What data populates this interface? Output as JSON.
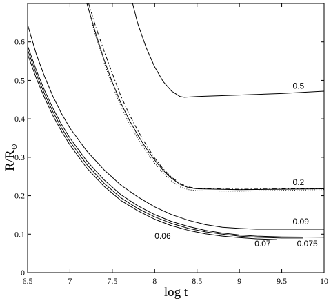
{
  "chart_data": {
    "type": "line",
    "title": "",
    "xlabel": "log t",
    "ylabel_main": "R/R",
    "ylabel_sub": "⊙",
    "xlim": [
      6.5,
      10
    ],
    "ylim": [
      0,
      0.7
    ],
    "x_ticks": [
      "6.5",
      "7",
      "7.5",
      "8",
      "8.5",
      "9",
      "9.5",
      "10"
    ],
    "y_ticks": [
      "0",
      "0.1",
      "0.2",
      "0.3",
      "0.4",
      "0.5",
      "0.6"
    ],
    "grid": false,
    "legend": "none",
    "series": [
      {
        "label": "0.5",
        "style": "solid",
        "x": [
          7.74,
          7.8,
          7.9,
          8.0,
          8.1,
          8.2,
          8.3,
          8.35,
          8.5,
          9.0,
          9.5,
          10.0
        ],
        "y": [
          0.7,
          0.648,
          0.585,
          0.535,
          0.497,
          0.472,
          0.458,
          0.456,
          0.458,
          0.462,
          0.466,
          0.472
        ]
      },
      {
        "label": "0.2",
        "style": "solid",
        "x": [
          7.2,
          7.3,
          7.4,
          7.5,
          7.6,
          7.7,
          7.8,
          7.9,
          8.0,
          8.1,
          8.2,
          8.3,
          8.4,
          8.5,
          9.0,
          9.5,
          10.0
        ],
        "y": [
          0.7,
          0.625,
          0.555,
          0.495,
          0.442,
          0.397,
          0.358,
          0.323,
          0.293,
          0.266,
          0.245,
          0.23,
          0.221,
          0.218,
          0.216,
          0.217,
          0.218
        ]
      },
      {
        "label": "",
        "style": "dashdot",
        "x": [
          7.22,
          7.3,
          7.4,
          7.5,
          7.6,
          7.7,
          7.8,
          7.9,
          8.0,
          8.1,
          8.2,
          8.3,
          8.4,
          8.5,
          9.0,
          9.5,
          10.0
        ],
        "y": [
          0.7,
          0.642,
          0.578,
          0.518,
          0.46,
          0.412,
          0.37,
          0.332,
          0.298,
          0.27,
          0.248,
          0.232,
          0.223,
          0.219,
          0.217,
          0.218,
          0.219
        ]
      },
      {
        "label": "",
        "style": "dotted",
        "x": [
          7.2,
          7.3,
          7.4,
          7.5,
          7.6,
          7.7,
          7.8,
          7.9,
          8.0,
          8.1,
          8.2,
          8.3,
          8.4,
          8.5,
          9.0,
          9.5,
          10.0
        ],
        "y": [
          0.7,
          0.618,
          0.548,
          0.487,
          0.434,
          0.388,
          0.349,
          0.315,
          0.285,
          0.259,
          0.238,
          0.223,
          0.216,
          0.213,
          0.212,
          0.214,
          0.216
        ]
      },
      {
        "label": "0.09",
        "style": "solid",
        "x": [
          6.5,
          6.6,
          6.7,
          6.8,
          6.9,
          7.0,
          7.2,
          7.4,
          7.6,
          7.8,
          8.0,
          8.2,
          8.4,
          8.6,
          8.8,
          9.0,
          9.2,
          9.5,
          10.0
        ],
        "y": [
          0.645,
          0.57,
          0.51,
          0.458,
          0.414,
          0.376,
          0.316,
          0.268,
          0.228,
          0.197,
          0.171,
          0.151,
          0.136,
          0.125,
          0.118,
          0.115,
          0.113,
          0.113,
          0.113
        ]
      },
      {
        "label": "0.06",
        "style": "solid",
        "x": [
          6.5,
          6.6,
          6.7,
          6.8,
          6.9,
          7.0,
          7.2,
          7.4,
          7.6,
          7.8,
          8.0,
          8.2,
          8.4,
          8.6,
          8.8,
          9.0,
          9.2,
          9.44
        ],
        "y": [
          0.568,
          0.507,
          0.455,
          0.408,
          0.368,
          0.332,
          0.272,
          0.225,
          0.188,
          0.161,
          0.139,
          0.122,
          0.11,
          0.101,
          0.095,
          0.091,
          0.088,
          0.086
        ]
      },
      {
        "label": "0.07",
        "style": "solid",
        "x": [
          6.5,
          6.6,
          6.7,
          6.8,
          6.9,
          7.0,
          7.2,
          7.4,
          7.6,
          7.8,
          8.0,
          8.2,
          8.4,
          8.6,
          8.8,
          9.0,
          9.2,
          9.5,
          9.75
        ],
        "y": [
          0.58,
          0.518,
          0.465,
          0.418,
          0.377,
          0.341,
          0.281,
          0.233,
          0.195,
          0.167,
          0.145,
          0.128,
          0.115,
          0.106,
          0.1,
          0.095,
          0.092,
          0.09,
          0.09
        ]
      },
      {
        "label": "0.075",
        "style": "solid",
        "x": [
          6.5,
          6.6,
          6.7,
          6.8,
          6.9,
          7.0,
          7.2,
          7.4,
          7.6,
          7.8,
          8.0,
          8.2,
          8.4,
          8.6,
          8.8,
          9.0,
          9.2,
          9.5,
          10.0
        ],
        "y": [
          0.59,
          0.528,
          0.474,
          0.427,
          0.386,
          0.35,
          0.29,
          0.242,
          0.203,
          0.174,
          0.151,
          0.133,
          0.12,
          0.11,
          0.103,
          0.098,
          0.095,
          0.093,
          0.092
        ]
      }
    ],
    "annotations": [
      {
        "text": "0.5",
        "x": 9.63,
        "y": 0.478
      },
      {
        "text": "0.2",
        "x": 9.63,
        "y": 0.228
      },
      {
        "text": "0.09",
        "x": 9.63,
        "y": 0.126
      },
      {
        "text": "0.06",
        "x": 8.0,
        "y": 0.088
      },
      {
        "text": "0.07",
        "x": 9.18,
        "y": 0.068
      },
      {
        "text": "0.075",
        "x": 9.68,
        "y": 0.068
      }
    ]
  }
}
